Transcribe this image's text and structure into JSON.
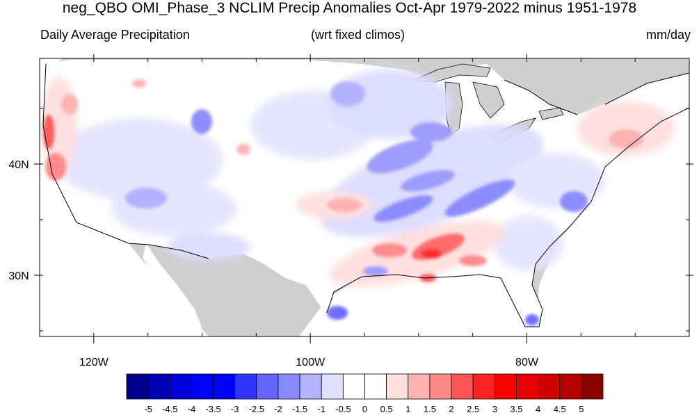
{
  "title": "neg_QBO OMI_Phase_3 NCLIM Precip Anomalies Oct-Apr 1979-2022 minus 1951-1978",
  "subtitle_left": "Daily Average Precipitation",
  "subtitle_center": "(wrt fixed climos)",
  "subtitle_right": "mm/day",
  "colors": {
    "land_missing": "#cfcfcf",
    "coast": "#000000",
    "neg": [
      "#00008b",
      "#0000b4",
      "#0000d8",
      "#0000ff",
      "#0000ff",
      "#3333ff",
      "#6666ff",
      "#8888ff",
      "#b3b3ff",
      "#e0e0ff"
    ],
    "pos": [
      "#ffe0e0",
      "#ffb3b3",
      "#ff8888",
      "#ff5555",
      "#ff2222",
      "#ff0000",
      "#e60000",
      "#cc0000",
      "#b30000",
      "#8b0000"
    ]
  },
  "map": {
    "lon_range": [
      -125,
      -65
    ],
    "lat_range": [
      24.5,
      49.5
    ],
    "lon_ticks": [
      {
        "lon": -120,
        "label": "120W"
      },
      {
        "lon": -100,
        "label": "100W"
      },
      {
        "lon": -80,
        "label": "80W"
      }
    ],
    "lat_ticks": [
      {
        "lat": 40,
        "label": "40N"
      },
      {
        "lat": 30,
        "label": "30N"
      }
    ]
  },
  "colorbar": {
    "labels": [
      "-5",
      "-4.5",
      "-4",
      "-3.5",
      "-3",
      "-2.5",
      "-2",
      "-1.5",
      "-1",
      "-0.5",
      "0",
      "0.5",
      "1",
      "1.5",
      "2",
      "2.5",
      "3",
      "3.5",
      "4",
      "4.5",
      "5"
    ],
    "colors": [
      "#00008b",
      "#0000b4",
      "#0000d8",
      "#0000ff",
      "#0000ff",
      "#3333ff",
      "#6666ff",
      "#8888ff",
      "#b3b3ff",
      "#e0e0ff",
      "#ffffff",
      "#ffffff",
      "#ffe0e0",
      "#ffb3b3",
      "#ff8888",
      "#ff5555",
      "#ff2222",
      "#ff0000",
      "#e60000",
      "#cc0000",
      "#b30000",
      "#8b0000"
    ]
  }
}
